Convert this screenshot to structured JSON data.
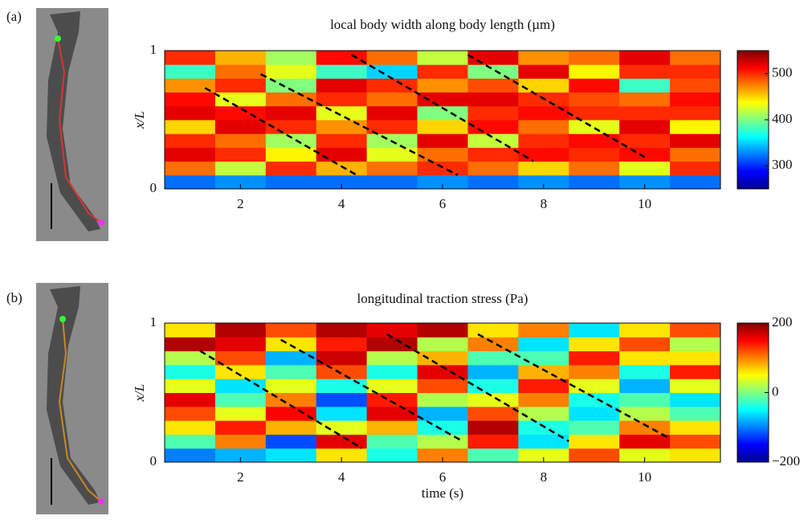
{
  "figure_labels": [
    "(a)",
    "(b)"
  ],
  "chart_data": [
    {
      "type": "heatmap",
      "title": "local body width along body length (µm)",
      "ylabel": "x/L",
      "x": [
        1,
        2,
        3,
        4,
        5,
        6,
        7,
        8,
        9,
        10,
        11
      ],
      "y_edges": [
        0,
        0.1,
        0.2,
        0.3,
        0.4,
        0.5,
        0.6,
        0.7,
        0.8,
        0.9,
        1
      ],
      "values": [
        [
          320,
          480,
          520,
          500,
          450,
          520,
          510,
          470,
          380,
          500
        ],
        [
          330,
          420,
          500,
          480,
          520,
          510,
          430,
          500,
          480,
          460
        ],
        [
          320,
          500,
          440,
          410,
          500,
          520,
          480,
          400,
          430,
          410
        ],
        [
          320,
          460,
          520,
          500,
          470,
          430,
          500,
          520,
          380,
          510
        ],
        [
          320,
          480,
          430,
          410,
          500,
          520,
          480,
          500,
          350,
          480
        ],
        [
          330,
          500,
          480,
          520,
          450,
          400,
          520,
          470,
          500,
          420
        ],
        [
          320,
          480,
          500,
          420,
          510,
          500,
          520,
          490,
          400,
          520
        ],
        [
          330,
          450,
          510,
          500,
          480,
          510,
          500,
          450,
          520,
          470
        ],
        [
          320,
          480,
          500,
          510,
          430,
          500,
          490,
          510,
          440,
          480
        ],
        [
          330,
          430,
          510,
          500,
          520,
          500,
          480,
          380,
          500,
          520
        ],
        [
          320,
          500,
          480,
          520,
          440,
          500,
          510,
          490,
          500,
          480
        ]
      ],
      "xlim": [
        0.5,
        11.5
      ],
      "ylim": [
        0,
        1
      ],
      "xticks": [
        2,
        4,
        6,
        8,
        10
      ],
      "yticks": [
        0,
        1
      ],
      "colormap": "jet",
      "clim": [
        250,
        550
      ],
      "cticks": [
        300,
        400,
        500
      ],
      "lines": [
        {
          "x": [
            1.3,
            4.3
          ],
          "y": [
            0.73,
            0.1
          ]
        },
        {
          "x": [
            2.4,
            6.3
          ],
          "y": [
            0.83,
            0.1
          ]
        },
        {
          "x": [
            4.2,
            7.8
          ],
          "y": [
            0.97,
            0.2
          ]
        },
        {
          "x": [
            6.5,
            10
          ],
          "y": [
            0.97,
            0.23
          ]
        }
      ]
    },
    {
      "type": "heatmap",
      "title": "longitudinal traction stress (Pa)",
      "ylabel": "x/L",
      "xlabel": "time (s)",
      "x": [
        1,
        2,
        3,
        4,
        5,
        6,
        7,
        8,
        9,
        10,
        11
      ],
      "y_edges": [
        0,
        0.1,
        0.2,
        0.3,
        0.4,
        0.5,
        0.6,
        0.7,
        0.8,
        0.9,
        1
      ],
      "values": [
        [
          -100,
          -20,
          60,
          120,
          160,
          40,
          -40,
          20,
          180,
          60
        ],
        [
          -80,
          100,
          140,
          40,
          -20,
          -60,
          60,
          120,
          160,
          180
        ],
        [
          -60,
          -120,
          80,
          150,
          100,
          40,
          -20,
          -80,
          60,
          120
        ],
        [
          60,
          160,
          40,
          -60,
          -120,
          -40,
          120,
          170,
          140,
          180
        ],
        [
          -40,
          -20,
          80,
          160,
          140,
          40,
          -40,
          20,
          180,
          160
        ],
        [
          100,
          20,
          -40,
          -80,
          20,
          120,
          160,
          80,
          20,
          180
        ],
        [
          -20,
          140,
          180,
          120,
          40,
          -40,
          -80,
          -20,
          100,
          60
        ],
        [
          40,
          -60,
          -40,
          20,
          100,
          140,
          80,
          -20,
          -60,
          100
        ],
        [
          120,
          60,
          -20,
          -60,
          -40,
          40,
          100,
          140,
          60,
          -60
        ],
        [
          40,
          160,
          100,
          20,
          -20,
          -80,
          -40,
          60,
          120,
          60
        ],
        [
          60,
          120,
          60,
          -20,
          -60,
          40,
          140,
          60,
          20,
          120
        ]
      ],
      "xlim": [
        0.5,
        11.5
      ],
      "ylim": [
        0,
        1
      ],
      "xticks": [
        2,
        4,
        6,
        8,
        10
      ],
      "yticks": [
        0,
        1
      ],
      "colormap": "jet",
      "clim": [
        -200,
        200
      ],
      "cticks": [
        {
          "value": -200,
          "label": "−200"
        },
        0,
        200
      ],
      "lines": [
        {
          "x": [
            1.2,
            4.4
          ],
          "y": [
            0.8,
            0.1
          ]
        },
        {
          "x": [
            2.8,
            6.4
          ],
          "y": [
            0.88,
            0.15
          ]
        },
        {
          "x": [
            4.9,
            8.5
          ],
          "y": [
            0.92,
            0.15
          ]
        },
        {
          "x": [
            6.7,
            10.5
          ],
          "y": [
            0.92,
            0.17
          ]
        }
      ]
    }
  ]
}
